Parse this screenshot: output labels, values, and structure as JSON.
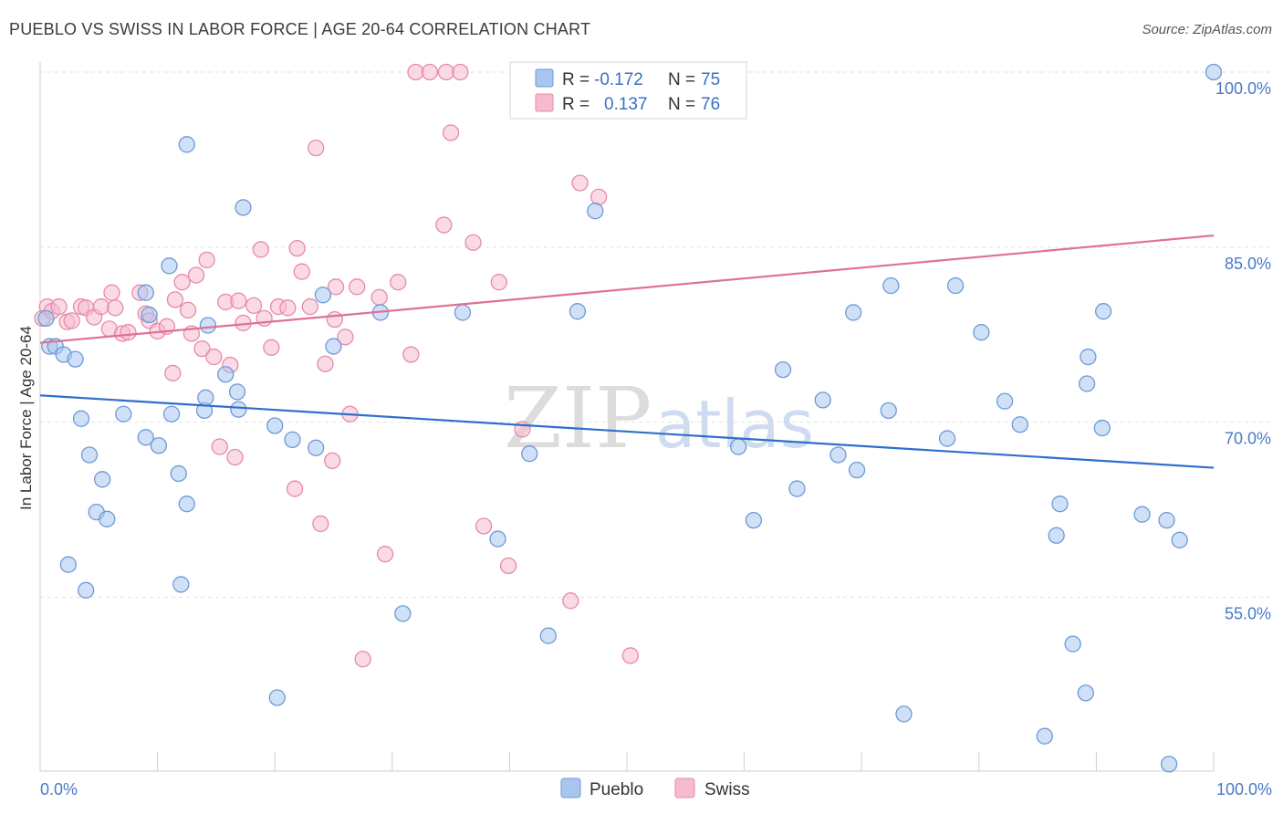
{
  "header": {
    "title": "PUEBLO VS SWISS IN LABOR FORCE | AGE 20-64 CORRELATION CHART",
    "source": "Source: ZipAtlas.com"
  },
  "legend": {
    "pueblo": {
      "r_label": "R =",
      "r_value": "-0.172",
      "n_label": "N =",
      "n_value": "75"
    },
    "swiss": {
      "r_label": "R =",
      "r_value": "0.137",
      "n_label": "N =",
      "n_value": "76"
    }
  },
  "bottom_legend": {
    "pueblo": "Pueblo",
    "swiss": "Swiss"
  },
  "colors": {
    "pueblo_fill": "#a9c6ee",
    "pueblo_stroke": "#6d9ad8",
    "pueblo_line": "#2f6fcc",
    "swiss_fill": "#f6bccd",
    "swiss_stroke": "#e88aa8",
    "swiss_line": "#e07098"
  },
  "chart_data": {
    "type": "scatter",
    "title": "PUEBLO VS SWISS IN LABOR FORCE | AGE 20-64 CORRELATION CHART",
    "xlabel": "",
    "ylabel": "In Labor Force | Age 20-64",
    "xlim": [
      0,
      100
    ],
    "ylim": [
      40.5,
      101
    ],
    "x_tick_labels": [
      "0.0%",
      "100.0%"
    ],
    "y_ticks": [
      55,
      70,
      85,
      100
    ],
    "y_tick_labels": [
      "55.0%",
      "70.0%",
      "85.0%",
      "100.0%"
    ],
    "grid": true,
    "series": [
      {
        "name": "Pueblo",
        "trend": {
          "x": [
            0,
            100
          ],
          "y": [
            72.3,
            66.1
          ]
        },
        "points": [
          [
            0.5,
            78.9
          ],
          [
            0.8,
            76.5
          ],
          [
            1.3,
            76.5
          ],
          [
            2.0,
            75.8
          ],
          [
            3.0,
            75.4
          ],
          [
            3.5,
            70.3
          ],
          [
            4.2,
            67.2
          ],
          [
            5.3,
            65.1
          ],
          [
            4.8,
            62.3
          ],
          [
            5.7,
            61.7
          ],
          [
            2.4,
            57.8
          ],
          [
            3.9,
            55.6
          ],
          [
            7.1,
            70.7
          ],
          [
            9.0,
            81.1
          ],
          [
            9.3,
            79.2
          ],
          [
            9.0,
            68.7
          ],
          [
            10.1,
            68.0
          ],
          [
            11.0,
            83.4
          ],
          [
            11.2,
            70.7
          ],
          [
            11.8,
            65.6
          ],
          [
            12.5,
            63.0
          ],
          [
            12.0,
            56.1
          ],
          [
            12.5,
            93.8
          ],
          [
            14.0,
            71.0
          ],
          [
            14.1,
            72.1
          ],
          [
            14.3,
            78.3
          ],
          [
            15.8,
            74.1
          ],
          [
            16.8,
            72.6
          ],
          [
            16.9,
            71.1
          ],
          [
            17.3,
            88.4
          ],
          [
            20.0,
            69.7
          ],
          [
            21.5,
            68.5
          ],
          [
            24.1,
            80.9
          ],
          [
            25.0,
            76.5
          ],
          [
            23.5,
            67.8
          ],
          [
            20.2,
            46.4
          ],
          [
            29.0,
            79.4
          ],
          [
            30.9,
            53.6
          ],
          [
            36.0,
            79.4
          ],
          [
            39.0,
            60.0
          ],
          [
            41.7,
            67.3
          ],
          [
            43.3,
            51.7
          ],
          [
            42.5,
            100.0
          ],
          [
            45.8,
            79.5
          ],
          [
            47.3,
            88.1
          ],
          [
            59.5,
            67.9
          ],
          [
            60.8,
            61.6
          ],
          [
            63.3,
            74.5
          ],
          [
            64.5,
            64.3
          ],
          [
            66.7,
            71.9
          ],
          [
            68.0,
            67.2
          ],
          [
            69.3,
            79.4
          ],
          [
            69.6,
            65.9
          ],
          [
            72.3,
            71.0
          ],
          [
            72.5,
            81.7
          ],
          [
            73.6,
            45.0
          ],
          [
            77.3,
            68.6
          ],
          [
            78.0,
            81.7
          ],
          [
            80.2,
            77.7
          ],
          [
            82.2,
            71.8
          ],
          [
            83.5,
            69.8
          ],
          [
            85.6,
            43.1
          ],
          [
            86.6,
            60.3
          ],
          [
            86.9,
            63.0
          ],
          [
            88.0,
            51.0
          ],
          [
            89.1,
            46.8
          ],
          [
            89.2,
            73.3
          ],
          [
            89.3,
            75.6
          ],
          [
            90.5,
            69.5
          ],
          [
            90.6,
            79.5
          ],
          [
            93.9,
            62.1
          ],
          [
            96.0,
            61.6
          ],
          [
            97.1,
            59.9
          ],
          [
            96.2,
            40.7
          ],
          [
            100.0,
            100.0
          ]
        ]
      },
      {
        "name": "Swiss",
        "trend": {
          "x": [
            0,
            100
          ],
          "y": [
            76.8,
            86.0
          ]
        },
        "points": [
          [
            0.2,
            78.9
          ],
          [
            0.6,
            79.9
          ],
          [
            1.0,
            79.5
          ],
          [
            1.6,
            79.9
          ],
          [
            2.3,
            78.6
          ],
          [
            2.7,
            78.7
          ],
          [
            3.5,
            79.9
          ],
          [
            3.9,
            79.8
          ],
          [
            4.6,
            79.0
          ],
          [
            5.2,
            79.9
          ],
          [
            5.9,
            78.0
          ],
          [
            6.1,
            81.1
          ],
          [
            6.4,
            79.8
          ],
          [
            7.0,
            77.6
          ],
          [
            7.5,
            77.7
          ],
          [
            8.5,
            81.1
          ],
          [
            9.0,
            79.3
          ],
          [
            9.3,
            78.7
          ],
          [
            10.0,
            77.8
          ],
          [
            10.8,
            78.2
          ],
          [
            11.5,
            80.5
          ],
          [
            12.1,
            82.0
          ],
          [
            12.6,
            79.6
          ],
          [
            12.9,
            77.6
          ],
          [
            13.3,
            82.6
          ],
          [
            13.8,
            76.3
          ],
          [
            14.2,
            83.9
          ],
          [
            14.8,
            75.6
          ],
          [
            15.8,
            80.3
          ],
          [
            16.2,
            74.9
          ],
          [
            16.9,
            80.4
          ],
          [
            17.3,
            78.5
          ],
          [
            18.2,
            80.0
          ],
          [
            18.8,
            84.8
          ],
          [
            19.1,
            78.9
          ],
          [
            19.7,
            76.4
          ],
          [
            20.3,
            79.9
          ],
          [
            21.1,
            79.8
          ],
          [
            21.9,
            84.9
          ],
          [
            22.3,
            82.9
          ],
          [
            23.0,
            79.9
          ],
          [
            23.5,
            93.5
          ],
          [
            24.3,
            75.0
          ],
          [
            25.1,
            78.8
          ],
          [
            26.0,
            77.3
          ],
          [
            25.2,
            81.6
          ],
          [
            27.0,
            81.6
          ],
          [
            26.4,
            70.7
          ],
          [
            24.9,
            66.7
          ],
          [
            23.9,
            61.3
          ],
          [
            28.9,
            80.7
          ],
          [
            29.4,
            58.7
          ],
          [
            30.5,
            82.0
          ],
          [
            31.6,
            75.8
          ],
          [
            32.0,
            100.0
          ],
          [
            33.2,
            100.0
          ],
          [
            34.6,
            100.0
          ],
          [
            35.8,
            100.0
          ],
          [
            35.0,
            94.8
          ],
          [
            34.4,
            86.9
          ],
          [
            36.9,
            85.4
          ],
          [
            37.8,
            61.1
          ],
          [
            39.1,
            82.0
          ],
          [
            39.9,
            57.7
          ],
          [
            41.1,
            69.4
          ],
          [
            41.4,
            97.0
          ],
          [
            45.2,
            54.7
          ],
          [
            46.0,
            90.5
          ],
          [
            47.6,
            89.3
          ],
          [
            50.3,
            50.0
          ],
          [
            42.2,
            100.0
          ],
          [
            21.7,
            64.3
          ],
          [
            15.3,
            67.9
          ],
          [
            11.3,
            74.2
          ],
          [
            16.6,
            67.0
          ],
          [
            27.5,
            49.7
          ]
        ]
      }
    ],
    "annotations": [
      "ZIPatlas"
    ]
  }
}
